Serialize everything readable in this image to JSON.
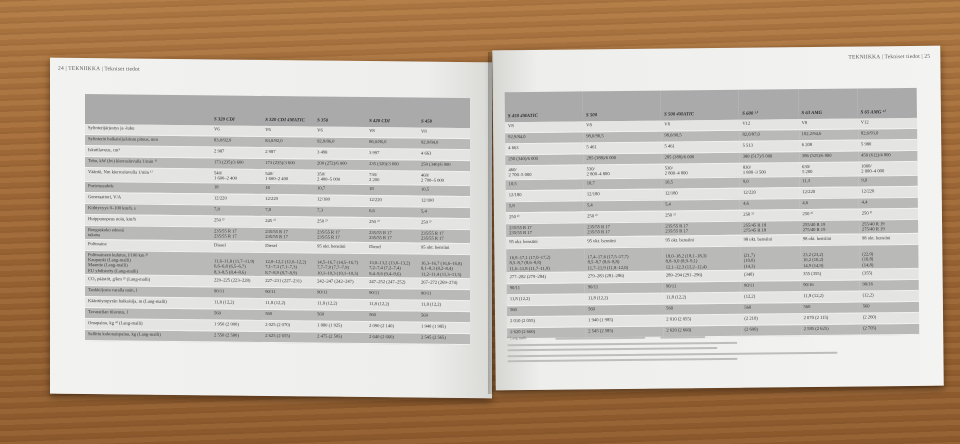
{
  "left_page": {
    "running_head": "24 | TEKNIIKKA | Tekniset tiedot",
    "columns": [
      "",
      "S 320 CDI",
      "S 320 CDI 4MATIC",
      "S 350",
      "S 420 CDI",
      "S 450"
    ],
    "rows": [
      [
        "Sylinterijärjestys ja -luku",
        "V6",
        "V6",
        "V6",
        "V8",
        "V8"
      ],
      [
        "Sylinterin halkaisija/iskun pituus, mm",
        "83,0/92,0",
        "83,0/92,0",
        "92,9/86,0",
        "86,0/86,0",
        "92,9/84,0"
      ],
      [
        "Iskutilavuus, cm³",
        "2 987",
        "2 987",
        "3 498",
        "3 997",
        "4 663"
      ],
      [
        "Teho, kW (hv) kierrosluvulla 1/min ¹⁾",
        "173 (235)/3 600",
        "173 (235)/3 600",
        "200 (272)/6 000",
        "235 (320)/3 600",
        "250 (340)/6 000"
      ],
      [
        "Vääntö, Nm kierrosluvulla 1/min ¹⁾",
        "540/\n1 600–2 400",
        "540/\n1 600–2 400",
        "350/\n2 400–5 000",
        "730/\n2 200",
        "460/\n2 700–5 000"
      ],
      [
        "Puristussuhde",
        "18",
        "18",
        "10,7",
        "18",
        "10,5"
      ],
      [
        "Generaattori, V/A",
        "12/220",
        "12/220",
        "12/180",
        "12/220",
        "12/180"
      ],
      [
        "Kiihtyvyys 0–100 km/h, s",
        "7,8",
        "7,8",
        "7,3",
        "6,6",
        "5,4"
      ],
      [
        "Huippunopeus noin, km/h",
        "250 ²⁾",
        "245 ²⁾",
        "250 ²⁾",
        "250 ²⁾",
        "250 ²⁾"
      ],
      [
        "Rengaskoko   edessä\n                      takana",
        "235/55 R 17\n235/55 R 17",
        "235/55 R 17\n235/55 R 17",
        "235/55 R 17\n235/55 R 17",
        "235/55 R 17\n235/55 R 17",
        "235/55 R 17\n235/55 R 17"
      ],
      [
        "Polttoaine",
        "Diesel",
        "Diesel",
        "95 okt. bensiini",
        "Diesel",
        "95 okt. bensiini"
      ],
      [
        "Polttoaineen kulutus, l/100 km ³⁾\nKaupunki (Lang-malli)\nMaantie (Lang-malli)\nEU yhdistetty (Lang-malli)",
        "\n11,6–11,8 (11,7–11,9)\n6,6–6,8 (6,5–6,7)\n8,3–8,5 (8,4–8,6)",
        "\n12,0–12,2 (12,0–12,2)\n7,1–7,3 (7,1–7,3)\n8,7–8,9 (8,7–8,9)",
        "\n14,5–16,7 (14,5–16,7)\n7,7–7,9 (7,7–7,9)\n10,1–10,3 (10,1–10,3)",
        "\n13,0–13,2 (13,0–13,2)\n7,2–7,4 (7,2–7,4)\n9,4–9,6 (9,4–9,6)",
        "\n16,3–16,7 (16,6–16,8)\n8,1–8,3 (8,2–8,4)\n11,2–11,4 (11,3–11,5)"
      ],
      [
        "CO₂ päästöt, g/km ³⁾ (Lang-malli)",
        "220–225 (223–228)",
        "227–231 (227–231)",
        "242–247 (242–247)",
        "247–252 (247–252)",
        "267–272 (269–274)"
      ],
      [
        "Tankki/josta varalla noin, l",
        "90/11",
        "90/11",
        "90/11",
        "90/11",
        "90/11"
      ],
      [
        "Kääntöympyrän halkaisija, m (Lang-malli)",
        "11,8 (12,2)",
        "11,8 (12,2)",
        "11,8 (12,2)",
        "11,8 (12,2)",
        "11,8 (12,2)"
      ],
      [
        "Tavaratilan tilavuus, l",
        "560",
        "560",
        "560",
        "560",
        "560"
      ],
      [
        "Omapaino, kg ⁴⁾ (Lang-malli)",
        "1 950 (2 000)",
        "2 025 (2 070)",
        "1 880 (1 925)",
        "2 090 (2 140)",
        "1 940 (1 985)"
      ],
      [
        "Sallittu kokonaispaino, kg (Lang-malli)",
        "2 550 (2 580)",
        "2 625 (2 655)",
        "2 475 (2 505)",
        "2 640 (2 660)",
        "2 545 (2 565)"
      ]
    ]
  },
  "right_page": {
    "running_head": "TEKNIIKKA | Tekniset tiedot | 25",
    "columns": [
      "S 450 4MATIC",
      "S 500",
      "S 500 4MATIC",
      "S 600 ¹⁾",
      "S 63 AMG",
      "S 65 AMG ¹⁾"
    ],
    "rows": [
      [
        "V8",
        "V8",
        "V8",
        "V12",
        "V8",
        "V12"
      ],
      [
        "92,9/84,0",
        "98,0/90,5",
        "98,0/90,5",
        "82,0/87,0",
        "102,2/94,6",
        "82,6/93,0"
      ],
      [
        "4 663",
        "5 461",
        "5 461",
        "5 513",
        "6 208",
        "5 980"
      ],
      [
        "250 (340)/6 000",
        "285 (388)/6 000",
        "285 (388)/6 000",
        "380 (517)/5 000",
        "386 (525)/6 800",
        "450 (612)/4 800"
      ],
      [
        "460/\n2 700–5 000",
        "530/\n2 800–4 800",
        "530/\n2 800–4 800",
        "830/\n1 800–3 500",
        "630/\n5 200",
        "1000/\n2 000–4 000"
      ],
      [
        "10,5",
        "10,7",
        "10,5",
        "9,0",
        "11,3",
        "9,0"
      ],
      [
        "12/180",
        "12/180",
        "12/180",
        "12/220",
        "12/220",
        "12/220"
      ],
      [
        "5,8",
        "5,4",
        "5,4",
        "4,6",
        "4,6",
        "4,4"
      ],
      [
        "250 ²⁾",
        "250 ²⁾",
        "250 ²⁾",
        "250 ²⁾",
        "250 ²⁾",
        "250 ²⁾"
      ],
      [
        "235/55 R 17\n235/55 R 17",
        "235/55 R 17\n235/55 R 17",
        "235/55 R 17\n235/55 R 17",
        "255/45 R 18\n275/45 R 18",
        "255/40 R 19\n275/40 R 19",
        "255/40 R 19\n275/40 R 19"
      ],
      [
        "95 okt. bensiini",
        "95 okt. bensiini",
        "95 okt. bensiini",
        "98 okt. bensiini",
        "98 okt. bensiini",
        "98 okt. bensiini"
      ],
      [
        "\n16,9–17,1 (17,0–17,2)\n8,5–8,7 (8,6–8,8)\n11,6–11,8 (11,7–11,9)",
        "\n17,4–17,6 (17,5–17,7)\n8,5–8,7 (8,6–8,8)\n11,7–11,9 (11,8–12,0)",
        "\n18,0–18,2 (18,1–18,3)\n8,8–9,0 (8,9–9,1)\n12,1–12,3 (12,2–12,4)",
        "\n(21,7)\n(10,0)\n(14,3)",
        "\n23,2 (23,2)\n10,2 (10,2)\n14,9 (14,9)",
        "\n(22,0)\n(10,8)\n(14,8)"
      ],
      [
        "277–282 (279–284)",
        "279–283 (281–286)",
        "289–294 (291–296)",
        "(340)",
        "355 (355)",
        "(355)"
      ],
      [
        "90/11",
        "90/11",
        "90/11",
        "90/11",
        "90/16",
        "90/16"
      ],
      [
        "11,8 (12,2)",
        "11,8 (12,2)",
        "11,8 (12,2)",
        "(12,2)",
        "11,8 (12,2)",
        "(12,2)"
      ],
      [
        "560",
        "560",
        "560",
        "560",
        "560",
        "560"
      ],
      [
        "2 010 (2 055)",
        "1 940 (1 985)",
        "2 010 (2 055)",
        "(2 210)",
        "2 070 (2 115)",
        "(2 260)"
      ],
      [
        "2 620 (2 660)",
        "2 545 (2 585)",
        "2 620 (2 660)",
        "(2 690)",
        "2 585 (2 625)",
        "(2 705)"
      ]
    ],
    "footnote_first": "¹⁾ Lang-malli."
  },
  "colors": {
    "header_gray": "#aaaaaa",
    "row_shade": "#b9b9b8",
    "row_light": "#e4e4e2",
    "wood": "#a56d3a"
  }
}
